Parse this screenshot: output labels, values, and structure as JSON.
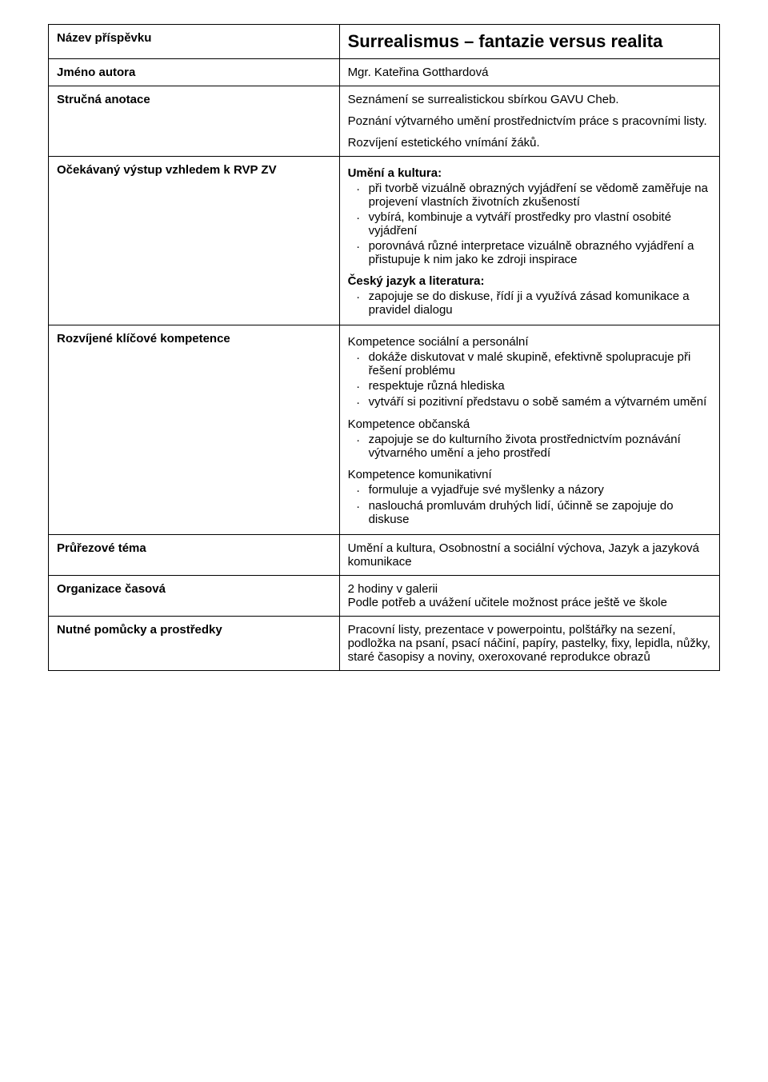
{
  "rows": {
    "title": {
      "label": "Název příspěvku",
      "value": "Surrealismus – fantazie versus realita"
    },
    "author": {
      "label": "Jméno autora",
      "value": "Mgr. Kateřina Gotthardová"
    },
    "annotation": {
      "label": "Stručná anotace",
      "paras": [
        "Seznámení se surrealistickou sbírkou GAVU Cheb.",
        "Poznání výtvarného umění prostřednictvím práce s pracovními listy.",
        "Rozvíjení estetického vnímání žáků."
      ]
    },
    "outcome": {
      "label": "Očekávaný výstup vzhledem k RVP ZV",
      "groups": [
        {
          "heading": "Umění a kultura:",
          "items": [
            "při tvorbě vizuálně obrazných vyjádření se vědomě zaměřuje na projevení vlastních životních zkušeností",
            "vybírá, kombinuje a vytváří prostředky pro vlastní osobité vyjádření",
            "porovnává různé interpretace vizuálně obrazného vyjádření a přistupuje k nim jako ke zdroji inspirace"
          ]
        },
        {
          "heading": "Český jazyk a literatura:",
          "items": [
            "zapojuje se do diskuse, řídí ji a využívá zásad komunikace a pravidel dialogu"
          ]
        }
      ]
    },
    "competences": {
      "label": "Rozvíjené klíčové kompetence",
      "groups": [
        {
          "heading": "Kompetence sociální a personální",
          "items": [
            "dokáže diskutovat v malé skupině, efektivně spolupracuje při řešení problému",
            "respektuje různá hlediska",
            "vytváří si pozitivní představu o sobě samém a výtvarném umění"
          ]
        },
        {
          "heading": "Kompetence občanská",
          "items": [
            "zapojuje se do kulturního života prostřednictvím poznávání výtvarného umění a jeho prostředí"
          ]
        },
        {
          "heading": "Kompetence komunikativní",
          "items": [
            "formuluje a vyjadřuje své myšlenky a názory",
            "naslouchá promluvám druhých lidí, účinně se zapojuje do diskuse"
          ]
        }
      ]
    },
    "crosscut": {
      "label": "Průřezové téma",
      "value": "Umění a kultura, Osobnostní a sociální výchova, Jazyk a jazyková komunikace"
    },
    "time": {
      "label": "Organizace časová",
      "lines": [
        "2 hodiny v galerii",
        "Podle potřeb a uvážení učitele možnost práce ještě ve škole"
      ]
    },
    "tools": {
      "label": "Nutné pomůcky a prostředky",
      "value": "Pracovní listy, prezentace v powerpointu, polštářky na sezení, podložka na psaní, psací náčiní, papíry, pastelky, fixy, lepidla, nůžky, staré časopisy a noviny, oxeroxované reprodukce obrazů"
    }
  },
  "bullet_char": "·"
}
